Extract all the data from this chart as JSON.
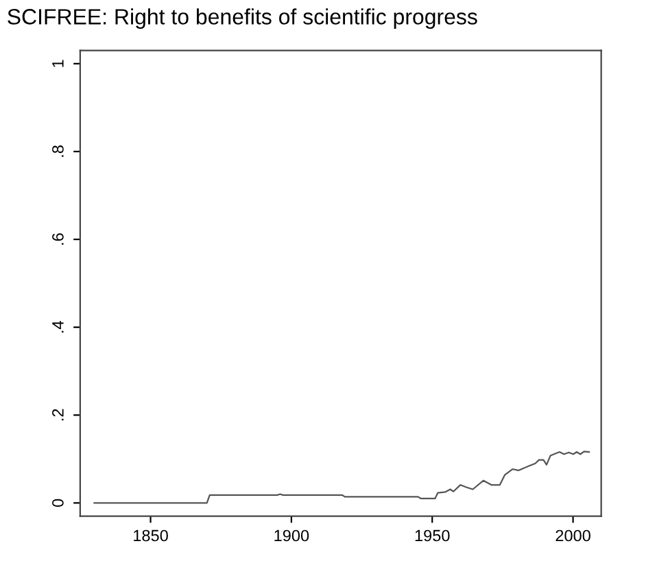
{
  "chart_data": {
    "type": "line",
    "title": "SCIFREE: Right to benefits of scientific progress",
    "x": [
      1830,
      1870,
      1871,
      1895,
      1896,
      1897,
      1918,
      1919,
      1945,
      1946,
      1951,
      1952,
      1954.7,
      1956.4,
      1957.5,
      1960,
      1962,
      1964.4,
      1968.2,
      1971,
      1974,
      1975.8,
      1978.5,
      1980.6,
      1984.3,
      1986.6,
      1987.9,
      1989.5,
      1990.6,
      1992,
      1995.2,
      1996.8,
      1998.5,
      2000.1,
      2001.3,
      2002.6,
      2003.9,
      2005.7
    ],
    "series": [
      {
        "color": "#555555",
        "values": [
          0,
          0,
          0.018,
          0.018,
          0.02,
          0.018,
          0.018,
          0.014,
          0.014,
          0.01,
          0.01,
          0.023,
          0.025,
          0.031,
          0.026,
          0.041,
          0.036,
          0.031,
          0.051,
          0.041,
          0.041,
          0.064,
          0.077,
          0.074,
          0.084,
          0.09,
          0.098,
          0.098,
          0.087,
          0.108,
          0.116,
          0.111,
          0.115,
          0.111,
          0.116,
          0.111,
          0.117,
          0.116
        ]
      }
    ],
    "xlim": [
      1825,
      2010
    ],
    "xticks": [
      1850,
      1900,
      1950,
      2000
    ],
    "ylim": [
      -0.03,
      1.03
    ],
    "yticks": [
      0,
      {
        "value": 0.2,
        "label": ".2"
      },
      {
        "value": 0.4,
        "label": ".4"
      },
      {
        "value": 0.6,
        "label": ".6"
      },
      {
        "value": 0.8,
        "label": ".8"
      },
      1
    ],
    "grid": false
  }
}
